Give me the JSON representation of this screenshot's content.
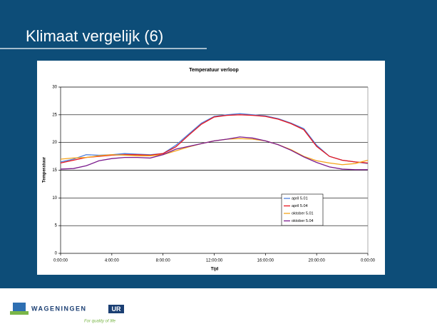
{
  "slide": {
    "title": "Klimaat vergelijk (6)"
  },
  "logo": {
    "name": "WAGENINGEN",
    "badge": "UR",
    "tagline": "For quality of life"
  },
  "chart_data": {
    "type": "line",
    "title": "Temperatuur verloop",
    "x_label": "Tijd",
    "y_label": "Temperatuur",
    "x": [
      0,
      1,
      2,
      3,
      4,
      5,
      6,
      7,
      8,
      9,
      10,
      11,
      12,
      13,
      14,
      15,
      16,
      17,
      18,
      19,
      20,
      21,
      22,
      23,
      24
    ],
    "xlim": [
      0,
      24
    ],
    "xticks": [
      {
        "value": 0,
        "label": "0:00:00"
      },
      {
        "value": 4,
        "label": "4:00:00"
      },
      {
        "value": 8,
        "label": "8:00:00"
      },
      {
        "value": 12,
        "label": "12:00:00"
      },
      {
        "value": 16,
        "label": "16:00:00"
      },
      {
        "value": 20,
        "label": "20:00:00"
      },
      {
        "value": 24,
        "label": "0:00:00"
      }
    ],
    "ylim": [
      0,
      30
    ],
    "yticks": [
      0,
      5,
      10,
      15,
      20,
      25,
      30
    ],
    "grid": true,
    "series": [
      {
        "name": "april 5.01",
        "color": "#4f7fdc",
        "values": [
          16.5,
          17,
          17.8,
          17.7,
          17.8,
          18,
          17.9,
          17.8,
          18,
          19.5,
          21.5,
          23.5,
          24.7,
          25,
          25.2,
          25,
          24.8,
          24.3,
          23.5,
          22.5,
          19.5,
          17.5,
          16.8,
          16.5,
          16.2
        ]
      },
      {
        "name": "april 5.04",
        "color": "#e8141c",
        "values": [
          16.3,
          16.8,
          17.3,
          17.5,
          17.7,
          17.8,
          17.8,
          17.7,
          18,
          19.2,
          21.3,
          23.3,
          24.6,
          24.9,
          25,
          24.9,
          24.7,
          24.2,
          23.4,
          22.3,
          19.3,
          17.5,
          16.8,
          16.5,
          16.3
        ]
      },
      {
        "name": "oktober 5.01",
        "color": "#f5a31a",
        "values": [
          17,
          17.2,
          17.3,
          17.6,
          17.8,
          17.7,
          17.6,
          17.6,
          17.8,
          18.5,
          19.2,
          19.8,
          20.3,
          20.6,
          20.7,
          20.6,
          20.3,
          19.6,
          18.7,
          17.5,
          16.7,
          16.3,
          16,
          16.2,
          16.8
        ]
      },
      {
        "name": "oktober 5.04",
        "color": "#7a1a8c",
        "values": [
          15.2,
          15.3,
          15.8,
          16.7,
          17.1,
          17.3,
          17.3,
          17.2,
          17.8,
          18.8,
          19.3,
          19.8,
          20.3,
          20.6,
          21,
          20.8,
          20.3,
          19.6,
          18.6,
          17.4,
          16.4,
          15.6,
          15.2,
          15.1,
          15.1
        ]
      }
    ]
  }
}
